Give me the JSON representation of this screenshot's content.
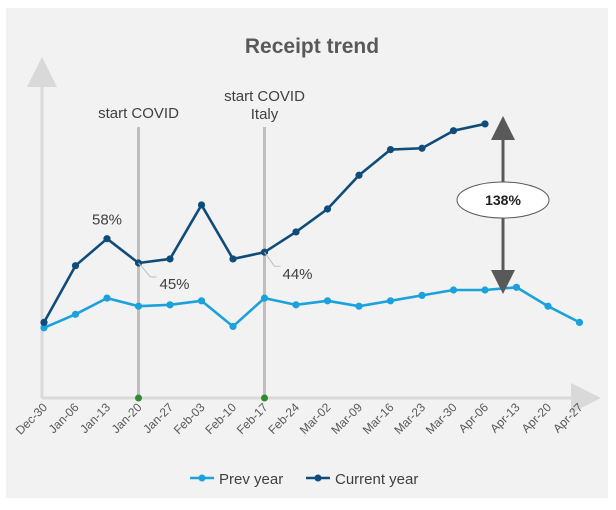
{
  "chart_data": {
    "type": "line",
    "title": "Receipt trend",
    "xlabel": "",
    "ylabel": "",
    "categories": [
      "Dec-30",
      "Jan-06",
      "Jan-13",
      "Jan-20",
      "Jan-27",
      "Feb-03",
      "Feb-10",
      "Feb-17",
      "Feb-24",
      "Mar-02",
      "Mar-09",
      "Mar-16",
      "Mar-23",
      "Mar-30",
      "Apr-06",
      "Apr-13",
      "Apr-20",
      "Apr-27"
    ],
    "ylim": [
      0,
      100
    ],
    "grid": false,
    "legend_position": "bottom",
    "series": [
      {
        "name": "Prev year",
        "color": "#1ba1dc",
        "values": [
          26,
          31,
          37,
          34,
          34.5,
          36,
          26.5,
          37,
          34.5,
          36,
          34,
          36,
          38,
          40,
          40,
          41,
          34,
          28
        ]
      },
      {
        "name": "Current year",
        "color": "#0f4c7a",
        "values": [
          28,
          49,
          59,
          50,
          51.5,
          71.5,
          51.5,
          54,
          61.5,
          70,
          82.5,
          92,
          92.5,
          99,
          101.5,
          null,
          null,
          null
        ]
      }
    ],
    "annotations": {
      "covid_start": {
        "label": "start COVID",
        "category": "Jan-20"
      },
      "covid_italy": {
        "label_line1": "start COVID",
        "label_line2": "Italy",
        "category": "Feb-17"
      },
      "label_58": {
        "text": "58%",
        "category": "Jan-13"
      },
      "label_45": {
        "text": "45%",
        "category": "Jan-20"
      },
      "label_44": {
        "text": "44%",
        "category": "Feb-17"
      },
      "growth": {
        "text": "138%",
        "category": "Apr-06"
      }
    }
  }
}
